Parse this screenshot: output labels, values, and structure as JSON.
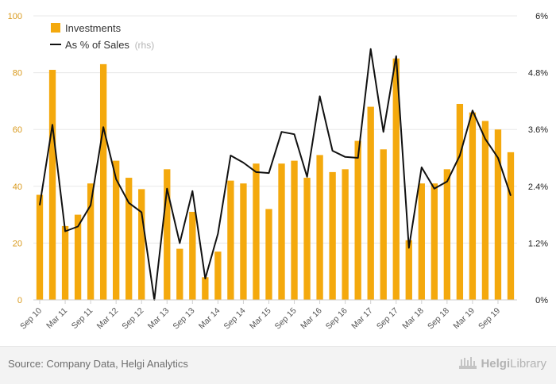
{
  "chart_data": {
    "type": "bar+line",
    "categories": [
      "Sep 10",
      "Dec 10",
      "Mar 11",
      "Jun 11",
      "Sep 11",
      "Dec 11",
      "Mar 12",
      "Jun 12",
      "Sep 12",
      "Dec 12",
      "Mar 13",
      "Jun 13",
      "Sep 13",
      "Dec 13",
      "Mar 14",
      "Jun 14",
      "Sep 14",
      "Dec 14",
      "Mar 15",
      "Jun 15",
      "Sep 15",
      "Dec 15",
      "Mar 16",
      "Jun 16",
      "Sep 16",
      "Dec 16",
      "Mar 17",
      "Jun 17",
      "Sep 17",
      "Dec 17",
      "Mar 18",
      "Jun 18",
      "Sep 18",
      "Dec 18",
      "Mar 19",
      "Jun 19",
      "Sep 19",
      "Dec 19"
    ],
    "x_tick_labels": [
      "Sep 10",
      "Mar 11",
      "Sep 11",
      "Mar 12",
      "Sep 12",
      "Mar 13",
      "Sep 13",
      "Mar 14",
      "Sep 14",
      "Mar 15",
      "Sep 15",
      "Mar 16",
      "Sep 16",
      "Mar 17",
      "Sep 17",
      "Mar 18",
      "Sep 18",
      "Mar 19",
      "Sep 19"
    ],
    "series": [
      {
        "name": "Investments",
        "type": "bar",
        "axis": "left",
        "values": [
          37,
          81,
          26,
          30,
          41,
          83,
          49,
          43,
          39,
          0,
          46,
          18,
          31,
          8,
          17,
          42,
          41,
          48,
          32,
          48,
          49,
          43,
          51,
          45,
          46,
          56,
          68,
          53,
          85,
          21,
          41,
          41,
          46,
          69,
          66,
          63,
          60,
          52
        ]
      },
      {
        "name": "As % of Sales",
        "suffix": "(rhs)",
        "type": "line",
        "axis": "right",
        "values": [
          2.0,
          3.7,
          1.45,
          1.55,
          2.0,
          3.65,
          2.55,
          2.05,
          1.85,
          0.0,
          2.35,
          1.2,
          2.3,
          0.45,
          1.4,
          3.05,
          2.9,
          2.7,
          2.68,
          3.55,
          3.5,
          2.6,
          4.3,
          3.15,
          3.02,
          3.0,
          5.3,
          3.55,
          5.15,
          1.1,
          2.8,
          2.35,
          2.5,
          3.05,
          4.0,
          3.4,
          3.0,
          2.2
        ]
      }
    ],
    "y_left": {
      "min": 0,
      "max": 100,
      "ticks": [
        0,
        20,
        40,
        60,
        80,
        100
      ]
    },
    "y_right": {
      "min": 0,
      "max": 6,
      "ticks": [
        "0%",
        "1.2%",
        "2.4%",
        "3.6%",
        "4.8%",
        "6%"
      ]
    },
    "grid": true,
    "legend_position": "top-left",
    "colors": {
      "bar": "#f4a90d",
      "line": "#111111",
      "left_axis_text": "#d99a1d",
      "right_axis_text": "#222222",
      "grid": "#e8e8e8"
    }
  },
  "footer": {
    "source": "Source: Company Data, Helgi Analytics",
    "brand_left": "Helgi",
    "brand_right": "Library"
  }
}
